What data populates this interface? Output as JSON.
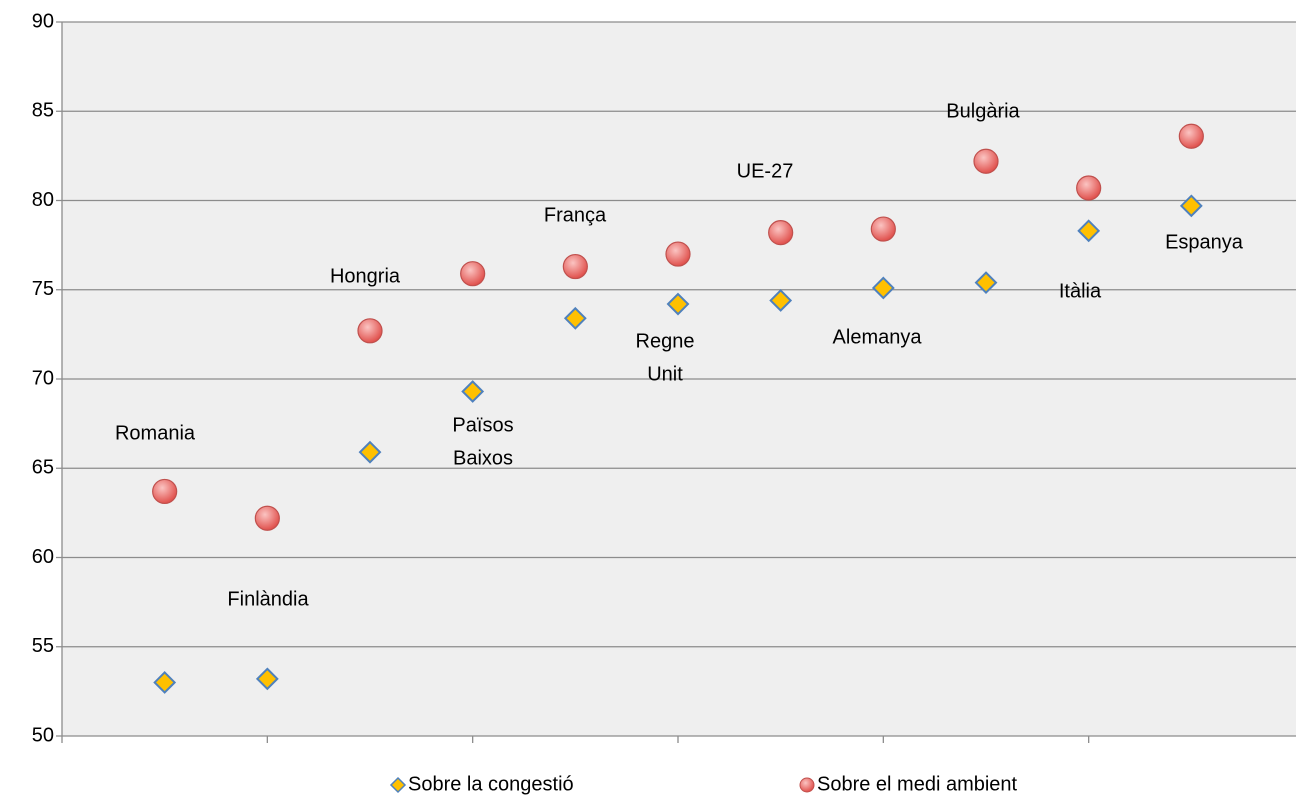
{
  "chart_data": {
    "type": "scatter",
    "x": [
      1,
      2,
      3,
      4,
      5,
      6,
      7,
      8,
      9,
      10,
      11
    ],
    "series": [
      {
        "name": "Sobre la congestió",
        "color": "#ffc000",
        "marker": "diamond",
        "values": [
          53.0,
          53.2,
          65.9,
          69.3,
          73.4,
          74.2,
          74.4,
          75.1,
          75.4,
          78.3,
          79.7
        ]
      },
      {
        "name": "Sobre el medi ambient",
        "color": "#e8605c",
        "marker": "circle",
        "values": [
          63.7,
          62.2,
          72.7,
          75.9,
          76.3,
          77.0,
          78.2,
          78.4,
          82.2,
          80.7,
          83.6
        ]
      }
    ],
    "annotations": [
      [
        "Romania"
      ],
      [
        "Finlàndia"
      ],
      [
        "Hongria"
      ],
      [
        "Països",
        "Baixos"
      ],
      [
        "França"
      ],
      [
        "Regne",
        "Unit"
      ],
      [
        "UE-27"
      ],
      [
        "Alemanya"
      ],
      [
        "Bulgària"
      ],
      [
        "Itàlia"
      ],
      [
        "Espanya"
      ]
    ],
    "xlim": [
      0,
      12
    ],
    "xticks": [
      0,
      2,
      4,
      6,
      8,
      10
    ],
    "ylim": [
      50,
      90
    ],
    "yticks": [
      50,
      55,
      60,
      65,
      70,
      75,
      80,
      85,
      90
    ],
    "grid": true,
    "legend": "bottom"
  }
}
